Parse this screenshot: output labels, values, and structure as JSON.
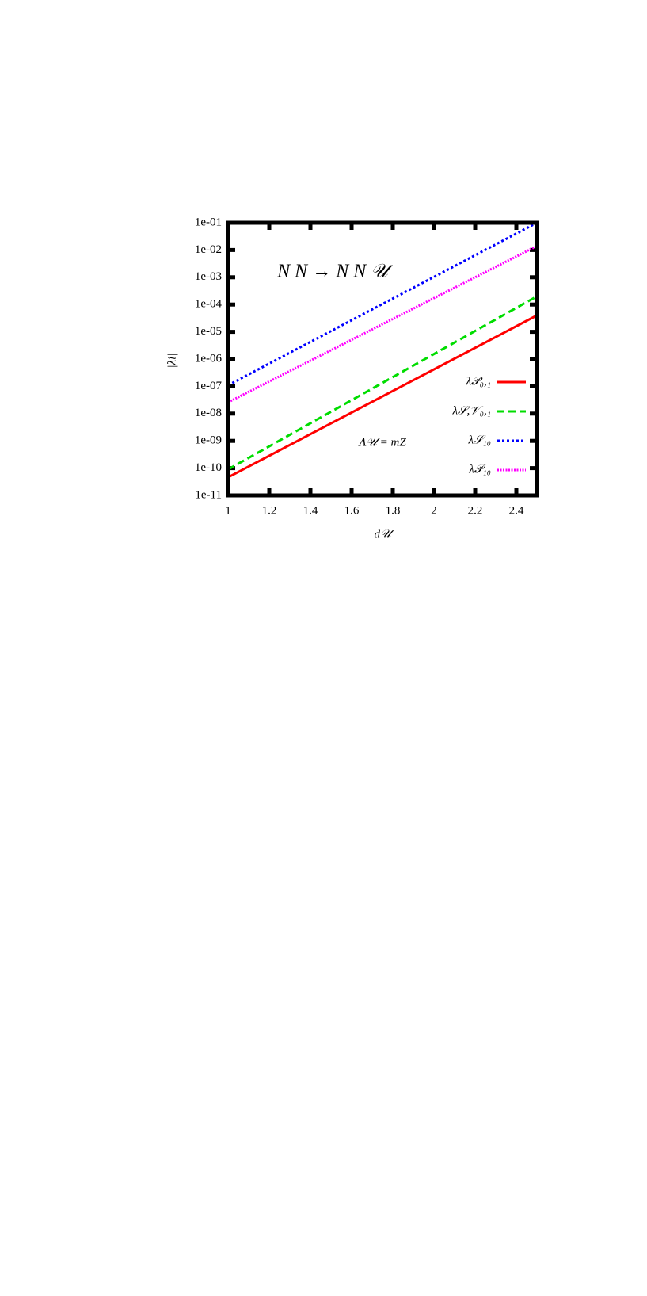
{
  "chart_data": {
    "type": "line",
    "title": "N N → N N 𝒰",
    "annotation": "Λ𝒰 = mZ",
    "xlabel": "d𝒰",
    "ylabel": "|λi|",
    "x": [
      1,
      2.5
    ],
    "series": [
      {
        "name": "λ𝒫₀,₁",
        "color": "#ff0000",
        "dash": "solid",
        "values": [
          4.6e-11,
          4e-05
        ]
      },
      {
        "name": "λ𝒮,𝒱₀,₁",
        "color": "#00dd00",
        "dash": "dashed",
        "values": [
          9e-11,
          0.0002
        ]
      },
      {
        "name": "λ𝒮₁₀",
        "color": "#0000ff",
        "dash": "dotted",
        "values": [
          1.1e-07,
          0.1
        ]
      },
      {
        "name": "λ𝒫₁₀",
        "color": "#ff00ff",
        "dash": "fine-dotted",
        "values": [
          2.6e-08,
          0.014
        ]
      }
    ],
    "xlim": [
      1,
      2.5
    ],
    "xticks": [
      1,
      1.2,
      1.4,
      1.6,
      1.8,
      2,
      2.2,
      2.4
    ],
    "ylim": [
      1e-11,
      0.1
    ],
    "log_y": true,
    "yticks": [
      {
        "value": 1e-11,
        "label": "1e-11"
      },
      {
        "value": 1e-10,
        "label": "1e-10"
      },
      {
        "value": 1e-09,
        "label": "1e-09"
      },
      {
        "value": 1e-08,
        "label": "1e-08"
      },
      {
        "value": 1e-07,
        "label": "1e-07"
      },
      {
        "value": 1e-06,
        "label": "1e-06"
      },
      {
        "value": 1e-05,
        "label": "1e-05"
      },
      {
        "value": 0.0001,
        "label": "1e-04"
      },
      {
        "value": 0.001,
        "label": "1e-03"
      },
      {
        "value": 0.01,
        "label": "1e-02"
      },
      {
        "value": 0.1,
        "label": "1e-01"
      }
    ],
    "legend": "lower right"
  }
}
